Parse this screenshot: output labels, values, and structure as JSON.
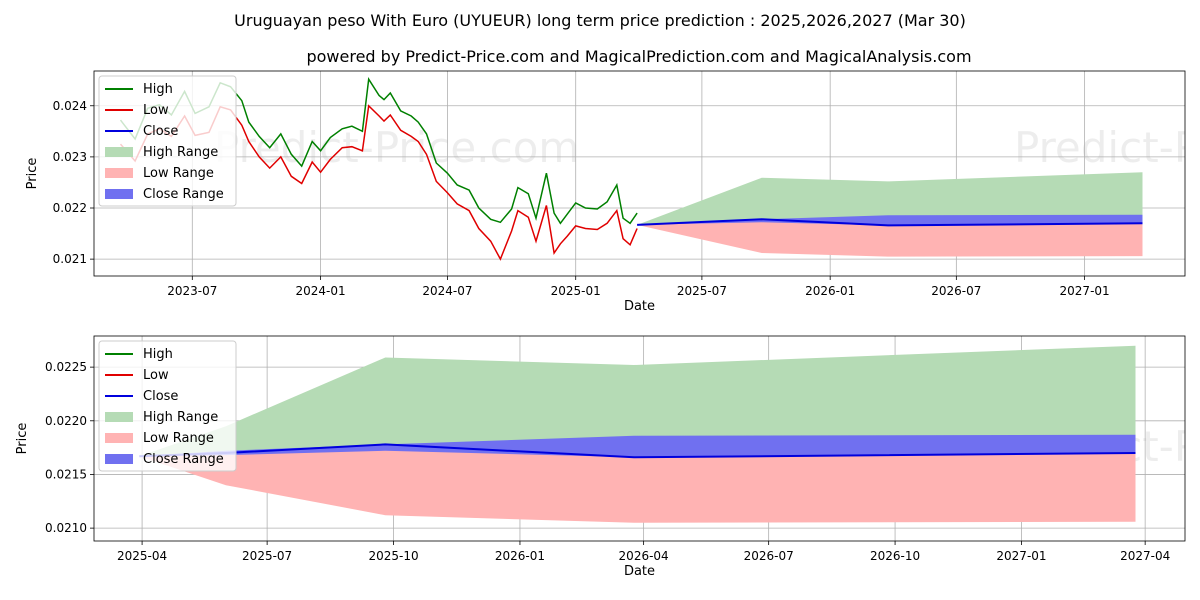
{
  "title": "Uruguayan peso With Euro (UYUEUR) long term price prediction : 2025,2026,2027 (Mar 30)",
  "subtitle": "powered by Predict-Price.com and MagicalPrediction.com and MagicalAnalysis.com",
  "watermark": "Predict-Price.com",
  "colors": {
    "high": "#008000",
    "low": "#e00000",
    "close": "#0000dd",
    "high_range": "#b5dbb5",
    "low_range": "#ffb3b3",
    "close_range": "#7070f0",
    "grid": "#b0b0b0"
  },
  "chart_data": [
    {
      "type": "line",
      "title": "Long term history and prediction",
      "xlabel": "Date",
      "ylabel": "Price",
      "xlim": [
        "2023-02-10",
        "2027-05-25"
      ],
      "ylim": [
        0.02067,
        0.02468
      ],
      "x_ticks": [
        {
          "date": "2023-07-01",
          "label": "2023-07"
        },
        {
          "date": "2024-01-01",
          "label": "2024-01"
        },
        {
          "date": "2024-07-01",
          "label": "2024-07"
        },
        {
          "date": "2025-01-01",
          "label": "2025-01"
        },
        {
          "date": "2025-07-01",
          "label": "2025-07"
        },
        {
          "date": "2026-01-01",
          "label": "2026-01"
        },
        {
          "date": "2026-07-01",
          "label": "2026-07"
        },
        {
          "date": "2027-01-01",
          "label": "2027-01"
        }
      ],
      "y_ticks": [
        {
          "value": 0.021,
          "label": "0.021"
        },
        {
          "value": 0.022,
          "label": "0.022"
        },
        {
          "value": 0.023,
          "label": "0.023"
        },
        {
          "value": 0.024,
          "label": "0.024"
        }
      ],
      "legend": [
        "High",
        "Low",
        "Close",
        "High Range",
        "Low Range",
        "Close Range"
      ],
      "legend_position": "upper-left",
      "history_dates": [
        "2023-03-20",
        "2023-04-10",
        "2023-04-28",
        "2023-05-15",
        "2023-06-01",
        "2023-06-20",
        "2023-07-05",
        "2023-07-25",
        "2023-08-10",
        "2023-08-25",
        "2023-09-10",
        "2023-09-20",
        "2023-10-05",
        "2023-10-20",
        "2023-11-05",
        "2023-11-20",
        "2023-12-05",
        "2023-12-20",
        "2024-01-01",
        "2024-01-15",
        "2024-02-01",
        "2024-02-15",
        "2024-03-01",
        "2024-03-10",
        "2024-03-25",
        "2024-04-01",
        "2024-04-10",
        "2024-04-25",
        "2024-05-10",
        "2024-05-20",
        "2024-06-01",
        "2024-06-15",
        "2024-07-01",
        "2024-07-15",
        "2024-08-01",
        "2024-08-15",
        "2024-09-01",
        "2024-09-15",
        "2024-10-01",
        "2024-10-10",
        "2024-10-25",
        "2024-11-05",
        "2024-11-20",
        "2024-12-01",
        "2024-12-10",
        "2024-12-20",
        "2025-01-01",
        "2025-01-15",
        "2025-02-01",
        "2025-02-15",
        "2025-03-01",
        "2025-03-10",
        "2025-03-20",
        "2025-03-30"
      ],
      "history_high": [
        0.02372,
        0.02335,
        0.02395,
        0.02402,
        0.02382,
        0.02428,
        0.02385,
        0.02398,
        0.02445,
        0.02437,
        0.0241,
        0.02368,
        0.0234,
        0.02318,
        0.02345,
        0.02305,
        0.02282,
        0.0233,
        0.02312,
        0.02338,
        0.02355,
        0.0236,
        0.0235,
        0.02452,
        0.0242,
        0.02412,
        0.02425,
        0.0239,
        0.0238,
        0.02368,
        0.02345,
        0.02288,
        0.02268,
        0.02245,
        0.02235,
        0.022,
        0.02178,
        0.02172,
        0.02198,
        0.0224,
        0.02228,
        0.0218,
        0.02268,
        0.0219,
        0.0217,
        0.02188,
        0.0221,
        0.022,
        0.02198,
        0.02212,
        0.02245,
        0.0218,
        0.0217,
        0.0219
      ],
      "history_low": [
        0.02325,
        0.02292,
        0.02345,
        0.02355,
        0.0234,
        0.0238,
        0.02342,
        0.02348,
        0.02398,
        0.02392,
        0.02362,
        0.0233,
        0.023,
        0.02278,
        0.023,
        0.02262,
        0.02248,
        0.0229,
        0.0227,
        0.02295,
        0.02318,
        0.0232,
        0.02312,
        0.024,
        0.0238,
        0.0237,
        0.02382,
        0.02352,
        0.0234,
        0.0233,
        0.02305,
        0.02252,
        0.0223,
        0.02208,
        0.02195,
        0.0216,
        0.02135,
        0.021,
        0.02155,
        0.02195,
        0.02182,
        0.02135,
        0.02205,
        0.02112,
        0.0213,
        0.02145,
        0.02165,
        0.0216,
        0.02158,
        0.0217,
        0.02195,
        0.0214,
        0.02128,
        0.0216
      ],
      "prediction_dates": [
        "2025-03-30",
        "2025-09-25",
        "2026-03-25",
        "2027-03-25"
      ],
      "close": [
        0.02167,
        0.02178,
        0.02166,
        0.0217
      ],
      "high_range": [
        0.02167,
        0.02259,
        0.02252,
        0.0227
      ],
      "low_range": [
        0.02167,
        0.02112,
        0.02105,
        0.02106
      ],
      "close_range_upper": [
        0.02167,
        0.02178,
        0.02186,
        0.02187
      ],
      "close_range_lower": [
        0.02167,
        0.02172,
        0.02166,
        0.0217
      ]
    },
    {
      "type": "line",
      "title": "Prediction detail",
      "xlabel": "Date",
      "ylabel": "Price",
      "xlim": [
        "2025-02-25",
        "2027-04-30"
      ],
      "ylim": [
        0.02088,
        0.02279
      ],
      "x_ticks": [
        {
          "date": "2025-04-01",
          "label": "2025-04"
        },
        {
          "date": "2025-07-01",
          "label": "2025-07"
        },
        {
          "date": "2025-10-01",
          "label": "2025-10"
        },
        {
          "date": "2026-01-01",
          "label": "2026-01"
        },
        {
          "date": "2026-04-01",
          "label": "2026-04"
        },
        {
          "date": "2026-07-01",
          "label": "2026-07"
        },
        {
          "date": "2026-10-01",
          "label": "2026-10"
        },
        {
          "date": "2027-01-01",
          "label": "2027-01"
        },
        {
          "date": "2027-04-01",
          "label": "2027-04"
        }
      ],
      "y_ticks": [
        {
          "value": 0.021,
          "label": "0.0210"
        },
        {
          "value": 0.0215,
          "label": "0.0215"
        },
        {
          "value": 0.022,
          "label": "0.0220"
        },
        {
          "value": 0.0225,
          "label": "0.0225"
        }
      ],
      "legend": [
        "High",
        "Low",
        "Close",
        "High Range",
        "Low Range",
        "Close Range"
      ],
      "legend_position": "upper-left",
      "dates": [
        "2025-03-30",
        "2025-06-01",
        "2025-09-25",
        "2026-03-25",
        "2027-03-25"
      ],
      "close": [
        0.02167,
        0.0217,
        0.02178,
        0.02166,
        0.0217
      ],
      "high_range": [
        0.02167,
        0.02195,
        0.02259,
        0.02252,
        0.0227
      ],
      "low_range": [
        0.02167,
        0.0214,
        0.02112,
        0.02105,
        0.02106
      ],
      "close_range_upper": [
        0.02167,
        0.02172,
        0.02178,
        0.02186,
        0.02187
      ],
      "close_range_lower": [
        0.02167,
        0.02168,
        0.02172,
        0.02166,
        0.0217
      ]
    }
  ]
}
